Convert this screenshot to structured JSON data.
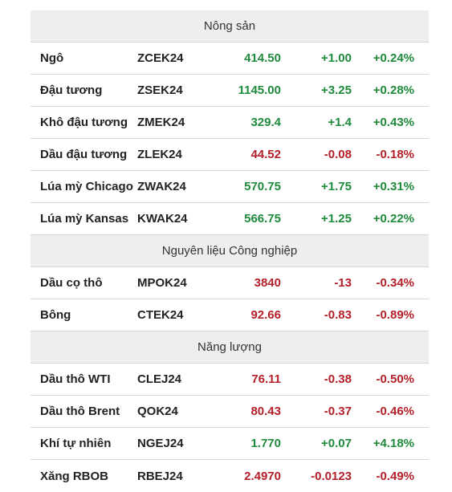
{
  "colors": {
    "up": "#1e8a3c",
    "down": "#b4202a",
    "section_bg": "#eeeeee"
  },
  "sections": [
    {
      "title": "Nông sản",
      "rows": [
        {
          "name": "Ngô",
          "code": "ZCEK24",
          "price": "414.50",
          "change": "+1.00",
          "pct": "+0.24%",
          "dir": "up"
        },
        {
          "name": "Đậu tương",
          "code": "ZSEK24",
          "price": "1145.00",
          "change": "+3.25",
          "pct": "+0.28%",
          "dir": "up"
        },
        {
          "name": "Khô đậu tương",
          "code": "ZMEK24",
          "price": "329.4",
          "change": "+1.4",
          "pct": "+0.43%",
          "dir": "up"
        },
        {
          "name": "Dầu đậu tương",
          "code": "ZLEK24",
          "price": "44.52",
          "change": "-0.08",
          "pct": "-0.18%",
          "dir": "down"
        },
        {
          "name": "Lúa mỳ Chicago",
          "code": "ZWAK24",
          "price": "570.75",
          "change": "+1.75",
          "pct": "+0.31%",
          "dir": "up"
        },
        {
          "name": "Lúa mỳ Kansas",
          "code": "KWAK24",
          "price": "566.75",
          "change": "+1.25",
          "pct": "+0.22%",
          "dir": "up"
        }
      ]
    },
    {
      "title": "Nguyên liệu Công nghiệp",
      "rows": [
        {
          "name": "Dầu cọ thô",
          "code": "MPOK24",
          "price": "3840",
          "change": "-13",
          "pct": "-0.34%",
          "dir": "down"
        },
        {
          "name": "Bông",
          "code": "CTEK24",
          "price": "92.66",
          "change": "-0.83",
          "pct": "-0.89%",
          "dir": "down"
        }
      ]
    },
    {
      "title": "Năng lượng",
      "rows": [
        {
          "name": "Dầu thô WTI",
          "code": "CLEJ24",
          "price": "76.11",
          "change": "-0.38",
          "pct": "-0.50%",
          "dir": "down"
        },
        {
          "name": "Dầu thô Brent",
          "code": "QOK24",
          "price": "80.43",
          "change": "-0.37",
          "pct": "-0.46%",
          "dir": "down"
        },
        {
          "name": "Khí tự nhiên",
          "code": "NGEJ24",
          "price": "1.770",
          "change": "+0.07",
          "pct": "+4.18%",
          "dir": "up"
        },
        {
          "name": "Xăng RBOB",
          "code": "RBEJ24",
          "price": "2.4970",
          "change": "-0.0123",
          "pct": "-0.49%",
          "dir": "down"
        }
      ]
    }
  ]
}
